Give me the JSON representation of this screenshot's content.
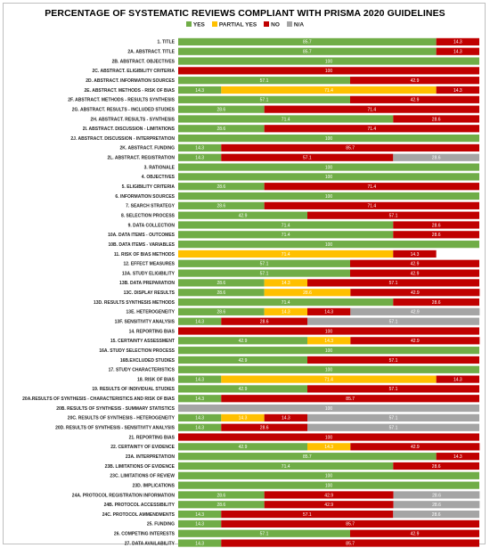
{
  "chart_data": {
    "type": "bar",
    "orientation": "horizontal",
    "stacked": true,
    "percent_scale": true,
    "title": "PERCENTAGE OF SYSTEMATIC REVIEWS COMPLIANT WITH PRISMA 2020 GUIDELINES",
    "legend": [
      "YES",
      "PARTIAL YES",
      "NO",
      "N/A"
    ],
    "legend_position": "top",
    "colors": {
      "YES": "#70ad47",
      "PARTIAL YES": "#ffc000",
      "NO": "#c00000",
      "N/A": "#a5a5a5"
    },
    "categories": [
      "1. TITLE",
      "2A. ABSTRACT. TITLE",
      "2B. ABSTRACT. OBJECTIVES",
      "2C. ABSTRACT. ELIGIBILITY CRITERIA",
      "2D. ABSTRACT. INFORMATION SOURCES",
      "2E. ABSTRACT. METHODS - RISK OF BIAS",
      "2F. ABSTRACT. METHODS - RESULTS SYNTHESIS",
      "2G. ABSTRACT. RESULTS - INCLUDED STUDIES",
      "2H. ABSTRACT. RESULTS - SYNTHESIS",
      "2I. ABSTRACT. DISCUSSION - LIMITATIONS",
      "2J. ABSTRACT. DISCUSSION - INTERPRETATION",
      "2K. ABSTRACT. FUNDING",
      "2L. ABSTRACT. REGISTRATION",
      "3. RATIONALE",
      "4. OBJECTIVES",
      "5. ELIGIBILITY CRITERIA",
      "6. INFORMATION SOURCES",
      "7. SEARCH STRATEGY",
      "8. SELECTION PROCESS",
      "9. DATA COLLECTION",
      "10A. DATA ITEMS - OUTCOMES",
      "10B. DATA ITEMS - VARIABLES",
      "11. RISK OF BIAS METHODS",
      "12. EFFECT MEASURES",
      "13A. STUDY ELIGIBILITY",
      "13B. DATA PREPARATION",
      "13C. DISPLAY RESULTS",
      "13D. RESULTS SYNTHESIS METHODS",
      "13E. HETEROGENEITY",
      "13F. SENSITIVITY ANALYSIS",
      "14. REPORTING BIAS",
      "15. CERTAINTY ASSESSMENT",
      "16A. STUDY SELECTION PROCESS",
      "16B.EXCLUDED STUDIES",
      "17. STUDY CHARACTERISTICS",
      "18. RISK OF BIAS",
      "19. RESULTS OF INDIVIDUAL STUDIES",
      "20A.RESULTS OF SYNTHESIS - CHARACTERISTICS AND RISK OF BIAS",
      "20B. RESULTS OF SYNTHESIS - SUMMARY STATISTICS",
      "20C. RESULTS OF SYNTHESIS - HETEROGENEITY",
      "20D. RESULTS OF SYNTHESIS - SENSITIVITY ANALYSIS",
      "21. REPORTING BIAS",
      "22. CERTAINTY OF EVIDENCE",
      "23A. INTERPRETATION",
      "23B. LIMITATIONS OF EVIDENCE",
      "23C. LIMITATIONS OF REVIEW",
      "23D. IMPLICATIONS",
      "24A. PROTOCOL REGISTRATION INFORMATION",
      "24B. PROTOCOL ACCESSIBILITY",
      "24C. PROTOCOL AMMENDMENTS",
      "25. FUNDING",
      "26. COMPETING INTERESTS",
      "27. DATA AVAILABILITY"
    ],
    "series": [
      {
        "name": "YES",
        "values": [
          85.7,
          85.7,
          100,
          0,
          57.1,
          14.3,
          57.1,
          28.6,
          71.4,
          28.6,
          100,
          14.3,
          14.3,
          100,
          100,
          28.6,
          100,
          28.6,
          42.9,
          71.4,
          71.4,
          100,
          0,
          57.1,
          57.1,
          28.6,
          28.6,
          71.4,
          28.6,
          14.3,
          0,
          42.9,
          100,
          42.9,
          100,
          14.3,
          42.9,
          14.3,
          0,
          14.3,
          14.3,
          0,
          42.9,
          85.7,
          71.4,
          100,
          100,
          28.6,
          28.6,
          14.3,
          14.3,
          57.1,
          14.3
        ]
      },
      {
        "name": "PARTIAL YES",
        "values": [
          0,
          0,
          0,
          0,
          0,
          71.4,
          0,
          0,
          0,
          0,
          0,
          0,
          0,
          0,
          0,
          0,
          0,
          0,
          0,
          0,
          0,
          0,
          71.4,
          0,
          0,
          14.3,
          28.6,
          0,
          14.3,
          0,
          0,
          14.3,
          0,
          0,
          0,
          71.4,
          0,
          0,
          0,
          14.3,
          0,
          0,
          14.3,
          0,
          0,
          0,
          0,
          0,
          0,
          0,
          0,
          0,
          0
        ]
      },
      {
        "name": "NO",
        "values": [
          14.3,
          14.3,
          0,
          100,
          42.9,
          14.3,
          42.9,
          71.4,
          28.6,
          71.4,
          0,
          85.7,
          57.1,
          0,
          0,
          71.4,
          0,
          71.4,
          57.1,
          28.6,
          28.6,
          0,
          14.3,
          42.9,
          42.9,
          57.1,
          42.9,
          28.6,
          14.3,
          28.6,
          100,
          42.9,
          0,
          57.1,
          0,
          14.3,
          57.1,
          85.7,
          0,
          14.3,
          28.6,
          100,
          42.9,
          14.3,
          28.6,
          0,
          0,
          42.9,
          42.9,
          57.1,
          85.7,
          42.9,
          85.7
        ]
      },
      {
        "name": "N/A",
        "values": [
          0,
          0,
          0,
          0,
          0,
          0,
          0,
          0,
          0,
          0,
          0,
          0,
          28.6,
          0,
          0,
          0,
          0,
          0,
          0,
          0,
          0,
          0,
          0,
          0,
          0,
          0,
          0,
          0,
          42.9,
          57.1,
          0,
          0,
          0,
          0,
          0,
          0,
          0,
          0,
          100,
          57.1,
          57.1,
          0,
          0,
          0,
          0,
          0,
          0,
          28.6,
          28.6,
          28.6,
          0,
          0,
          0
        ]
      }
    ],
    "xlim": [
      0,
      100
    ],
    "xlabel": "",
    "ylabel": ""
  }
}
